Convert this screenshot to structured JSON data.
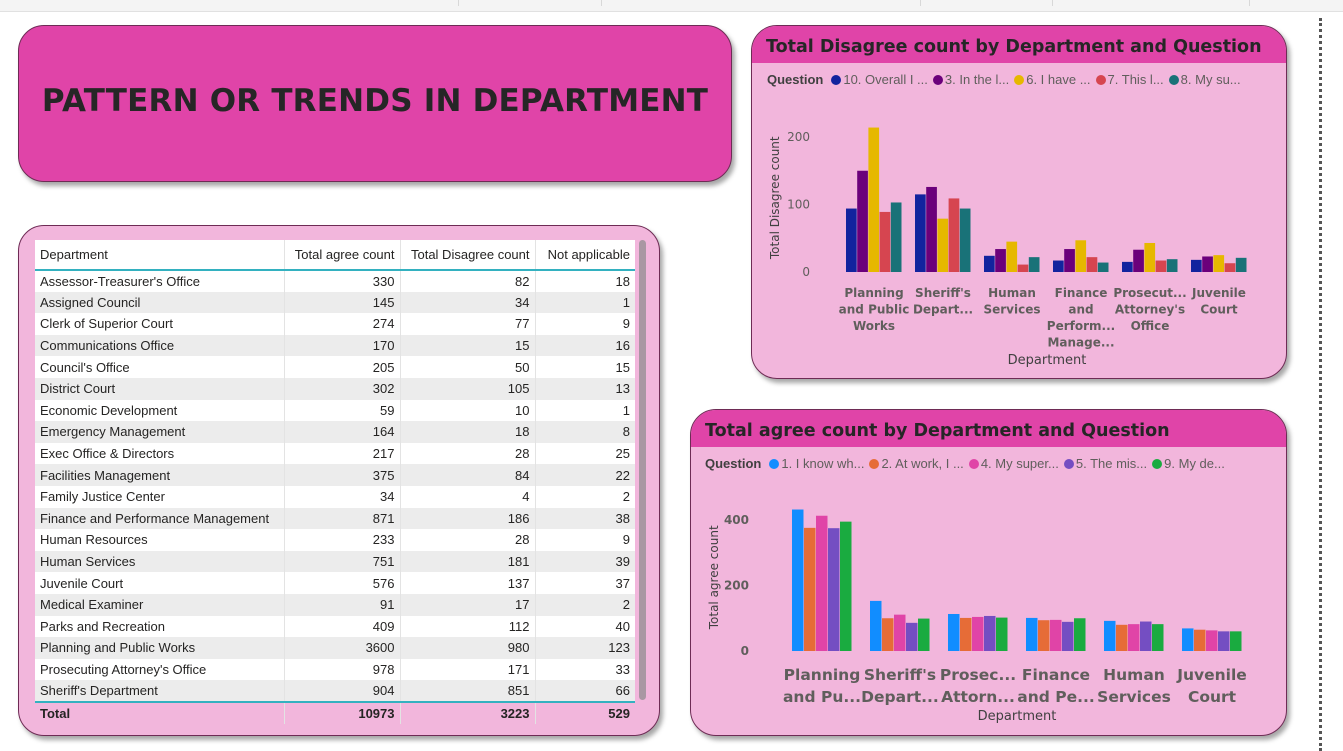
{
  "page_title": "PATTERN OR TRENDS IN DEPARTMENT",
  "table": {
    "columns": [
      "Department",
      "Total agree count",
      "Total Disagree count",
      "Not applicable"
    ],
    "rows": [
      [
        "Assessor-Treasurer's Office",
        "330",
        "82",
        "18"
      ],
      [
        "Assigned Council",
        "145",
        "34",
        "1"
      ],
      [
        "Clerk of Superior Court",
        "274",
        "77",
        "9"
      ],
      [
        "Communications Office",
        "170",
        "15",
        "16"
      ],
      [
        "Council's Office",
        "205",
        "50",
        "15"
      ],
      [
        "District Court",
        "302",
        "105",
        "13"
      ],
      [
        "Economic Development",
        "59",
        "10",
        "1"
      ],
      [
        "Emergency Management",
        "164",
        "18",
        "8"
      ],
      [
        "Exec Office & Directors",
        "217",
        "28",
        "25"
      ],
      [
        "Facilities Management",
        "375",
        "84",
        "22"
      ],
      [
        "Family Justice Center",
        "34",
        "4",
        "2"
      ],
      [
        "Finance and Performance Management",
        "871",
        "186",
        "38"
      ],
      [
        "Human Resources",
        "233",
        "28",
        "9"
      ],
      [
        "Human Services",
        "751",
        "181",
        "39"
      ],
      [
        "Juvenile Court",
        "576",
        "137",
        "37"
      ],
      [
        "Medical Examiner",
        "91",
        "17",
        "2"
      ],
      [
        "Parks and Recreation",
        "409",
        "112",
        "40"
      ],
      [
        "Planning and Public Works",
        "3600",
        "980",
        "123"
      ],
      [
        "Prosecuting Attorney's Office",
        "978",
        "171",
        "33"
      ],
      [
        "Sheriff's Department",
        "904",
        "851",
        "66"
      ]
    ],
    "total": [
      "Total",
      "10973",
      "3223",
      "529"
    ]
  },
  "chart_data": [
    {
      "type": "bar",
      "title": "Total Disagree count by Department and Question",
      "legend_title": "Question",
      "xlabel": "Department",
      "ylabel": "Total Disagree count",
      "ylim": [
        0,
        220
      ],
      "yticks": [
        0,
        100,
        200
      ],
      "categories": [
        [
          "Planning",
          "and Public",
          "Works"
        ],
        [
          "Sheriff's",
          "Depart..."
        ],
        [
          "Human",
          "Services"
        ],
        [
          "Finance",
          "and",
          "Perform...",
          "Manage..."
        ],
        [
          "Prosecut...",
          "Attorney's",
          "Office"
        ],
        [
          "Juvenile",
          "Court"
        ]
      ],
      "series": [
        {
          "name": "10. Overall I ...",
          "color": "#12239e",
          "values": [
            94,
            115,
            24,
            17,
            15,
            18
          ]
        },
        {
          "name": "3. In the l...",
          "color": "#6b007b",
          "values": [
            150,
            126,
            34,
            34,
            33,
            23
          ]
        },
        {
          "name": "6. I have ...",
          "color": "#e6b800",
          "values": [
            214,
            79,
            45,
            47,
            43,
            25
          ]
        },
        {
          "name": "7. This l...",
          "color": "#d64550",
          "values": [
            89,
            109,
            11,
            22,
            17,
            13
          ]
        },
        {
          "name": "8. My su...",
          "color": "#197278",
          "values": [
            103,
            94,
            22,
            14,
            19,
            21
          ]
        }
      ]
    },
    {
      "type": "bar",
      "title": "Total agree count by Department and Question",
      "legend_title": "Question",
      "xlabel": "Department",
      "ylabel": "Total agree count",
      "ylim": [
        0,
        450
      ],
      "yticks": [
        0,
        200,
        400
      ],
      "categories": [
        [
          "Planning",
          "and Pu..."
        ],
        [
          "Sheriff's",
          "Depart..."
        ],
        [
          "Prosec...",
          "Attorn..."
        ],
        [
          "Finance",
          "and Pe..."
        ],
        [
          "Human",
          "Services"
        ],
        [
          "Juvenile",
          "Court"
        ]
      ],
      "series": [
        {
          "name": "1. I know wh...",
          "color": "#118dff",
          "values": [
            432,
            153,
            113,
            101,
            92,
            69
          ]
        },
        {
          "name": "2. At work, I ...",
          "color": "#e66c37",
          "values": [
            376,
            100,
            101,
            94,
            80,
            65
          ]
        },
        {
          "name": "4. My super...",
          "color": "#e044a7",
          "values": [
            413,
            111,
            104,
            95,
            82,
            63
          ]
        },
        {
          "name": "5. The mis...",
          "color": "#744ec2",
          "values": [
            375,
            86,
            107,
            89,
            90,
            60
          ]
        },
        {
          "name": "9. My de...",
          "color": "#1aab40",
          "values": [
            395,
            99,
            102,
            100,
            82,
            60
          ]
        }
      ]
    }
  ]
}
